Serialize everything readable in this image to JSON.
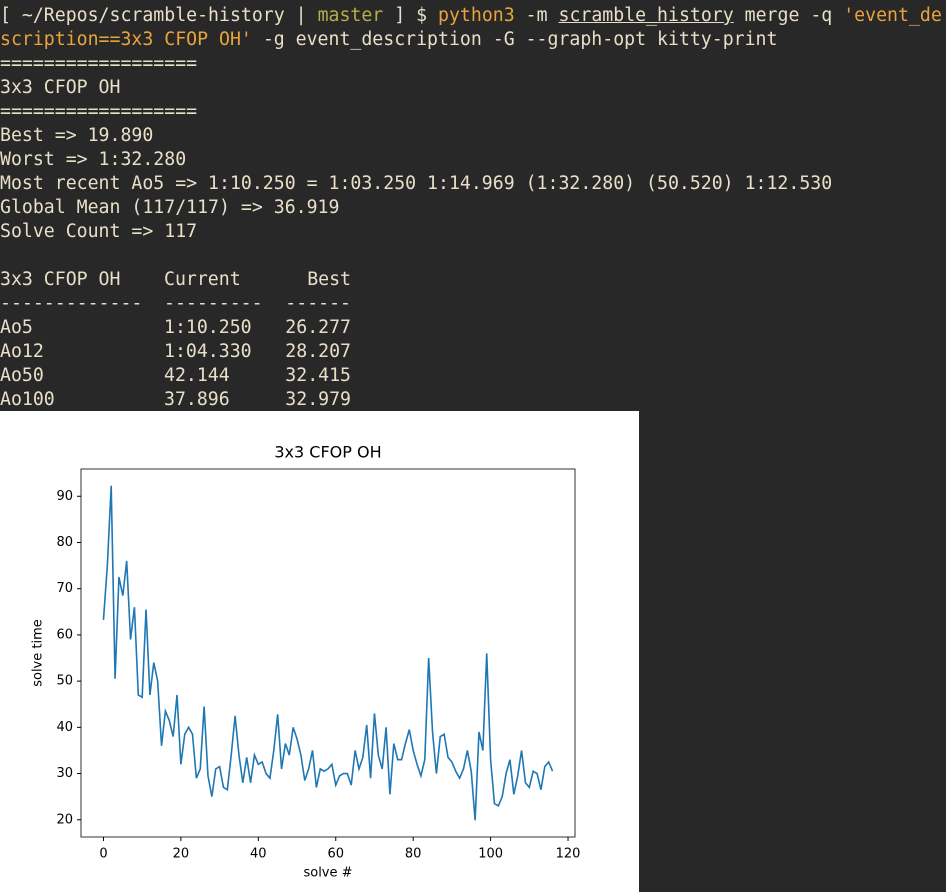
{
  "terminal": {
    "command_lines": [
      [
        {
          "text": "[ ~/Repos/scramble-history |",
          "color": "#e8dfc8"
        },
        {
          "text": "master",
          "color": "#b3b04a"
        },
        {
          "text": "] $",
          "color": "#e8dfc8"
        },
        {
          "text": "python3",
          "color": "#e8a43c"
        },
        {
          "text": "-m",
          "color": "#e8dfc8"
        },
        {
          "text": "scramble_history",
          "color": "#e8dfc8",
          "underline": true
        },
        {
          "text": "merge -q",
          "color": "#e8dfc8"
        },
        {
          "text": "'event_de",
          "color": "#e8a43c"
        }
      ],
      [
        {
          "text": "scription==3x3 CFOP OH'",
          "color": "#e8a43c"
        },
        {
          "text": "-g event_description -G --graph-opt kitty-print",
          "color": "#e8dfc8"
        }
      ]
    ],
    "output_lines": [
      "==================",
      "3x3 CFOP OH",
      "==================",
      "Best => 19.890",
      "Worst => 1:32.280",
      "Most recent Ao5 => 1:10.250 = 1:03.250 1:14.969 (1:32.280) (50.520) 1:12.530",
      "Global Mean (117/117) => 36.919",
      "Solve Count => 117"
    ],
    "table": {
      "header": [
        "3x3 CFOP OH",
        "Current",
        "Best"
      ],
      "rule": [
        "-------------",
        "---------",
        "------"
      ],
      "rows": [
        [
          "Ao5",
          "1:10.250",
          "26.277"
        ],
        [
          "Ao12",
          "1:04.330",
          "28.207"
        ],
        [
          "Ao50",
          "42.144",
          "32.415"
        ],
        [
          "Ao100",
          "37.896",
          "32.979"
        ]
      ]
    }
  },
  "chart_data": {
    "type": "line",
    "title": "3x3 CFOP OH",
    "x_label": "solve #",
    "y_label": "solve time",
    "x": [
      0,
      1,
      2,
      3,
      4,
      5,
      6,
      7,
      8,
      9,
      10,
      11,
      12,
      13,
      14,
      15,
      16,
      17,
      18,
      19,
      20,
      21,
      22,
      23,
      24,
      25,
      26,
      27,
      28,
      29,
      30,
      31,
      32,
      33,
      34,
      35,
      36,
      37,
      38,
      39,
      40,
      41,
      42,
      43,
      44,
      45,
      46,
      47,
      48,
      49,
      50,
      51,
      52,
      53,
      54,
      55,
      56,
      57,
      58,
      59,
      60,
      61,
      62,
      63,
      64,
      65,
      66,
      67,
      68,
      69,
      70,
      71,
      72,
      73,
      74,
      75,
      76,
      77,
      78,
      79,
      80,
      81,
      82,
      83,
      84,
      85,
      86,
      87,
      88,
      89,
      90,
      91,
      92,
      93,
      94,
      95,
      96,
      97,
      98,
      99,
      100,
      101,
      102,
      103,
      104,
      105,
      106,
      107,
      108,
      109,
      110,
      111,
      112,
      113,
      114,
      115,
      116
    ],
    "series": [
      {
        "name": "solve time",
        "color": "#1f77b4",
        "values": [
          63.25,
          74.969,
          92.28,
          50.52,
          72.53,
          68.5,
          76,
          59,
          66,
          47,
          46.5,
          65.5,
          47,
          54,
          50,
          36,
          43.5,
          41.5,
          38,
          47,
          32,
          38.5,
          40,
          38.5,
          29,
          31,
          44.5,
          29.5,
          25,
          31,
          31.5,
          27,
          26.5,
          34,
          42.5,
          34,
          28,
          33.5,
          28,
          34,
          32,
          32.5,
          30,
          29,
          35,
          42.8,
          31,
          36.5,
          34,
          40,
          37.5,
          34,
          28.5,
          31,
          35,
          27,
          31,
          30.5,
          31,
          32,
          27.5,
          29.5,
          30,
          30,
          27.5,
          35,
          31,
          33.5,
          40.5,
          29,
          43,
          34,
          31,
          40,
          25.5,
          36.5,
          33,
          33,
          36.5,
          39.5,
          35,
          32,
          29.5,
          33,
          55,
          39,
          30,
          38,
          38.5,
          33.5,
          32.5,
          30.5,
          29,
          31,
          35,
          30.5,
          19.89,
          39,
          35,
          56,
          33,
          23.5,
          23,
          25,
          30,
          33,
          25.5,
          29.5,
          35,
          28,
          27,
          30.5,
          30,
          26.5,
          31.5,
          32.5,
          30.5
        ]
      }
    ],
    "xlim": [
      -5.8,
      121.8
    ],
    "xticks": [
      0,
      20,
      40,
      60,
      80,
      100,
      120
    ],
    "ylim": [
      16.27,
      95.9
    ],
    "yticks": [
      20,
      30,
      40,
      50,
      60,
      70,
      80,
      90
    ]
  }
}
